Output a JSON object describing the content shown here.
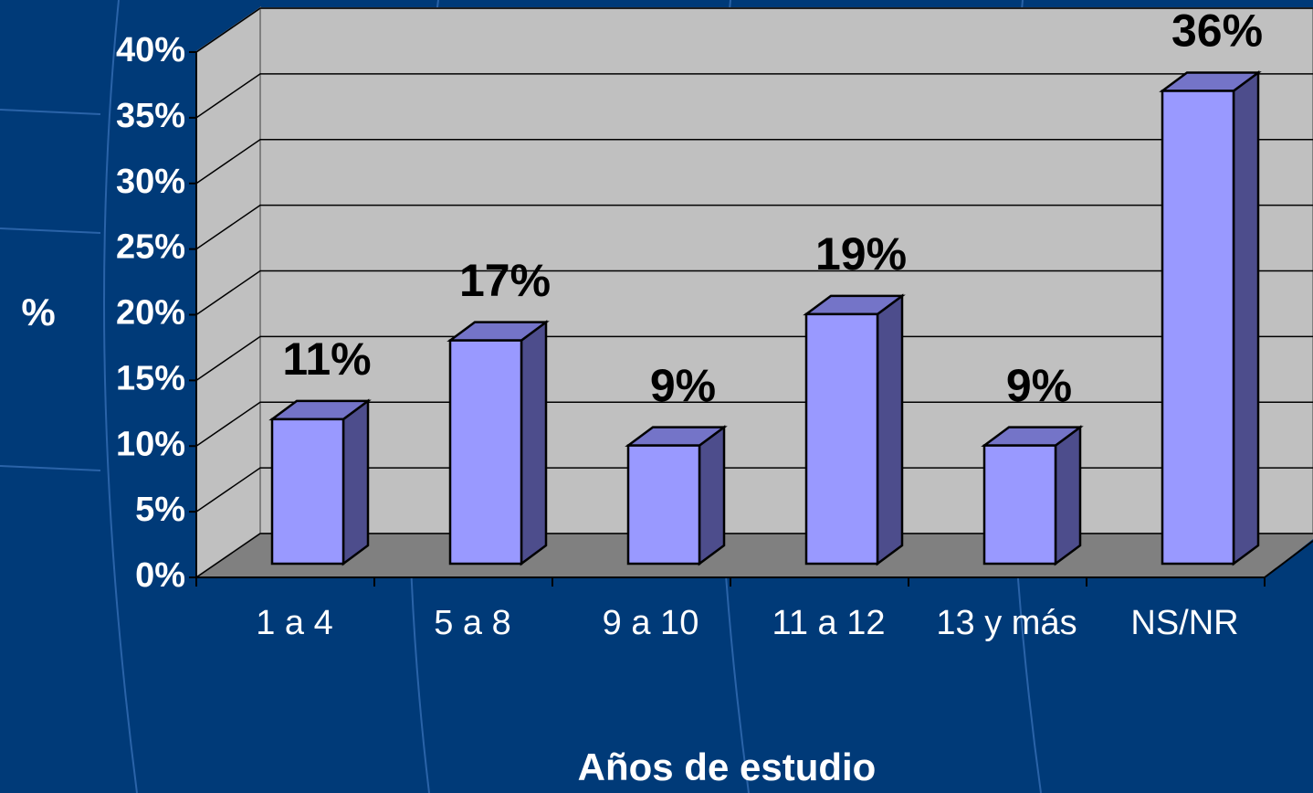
{
  "chart_data": {
    "type": "bar3d",
    "categories": [
      "1 a 4",
      "5 a 8",
      "9 a 10",
      "11 a 12",
      "13 y más",
      "NS/NR"
    ],
    "values": [
      11,
      17,
      9,
      19,
      9,
      36
    ],
    "value_labels": [
      "11%",
      "17%",
      "9%",
      "19%",
      "9%",
      "36%"
    ],
    "color": "#9999ff",
    "ylim": [
      0,
      40
    ],
    "yticks": [
      {
        "value": 0,
        "label": "0%"
      },
      {
        "value": 5,
        "label": "5%"
      },
      {
        "value": 10,
        "label": "10%"
      },
      {
        "value": 15,
        "label": "15%"
      },
      {
        "value": 20,
        "label": "20%"
      },
      {
        "value": 25,
        "label": "25%"
      },
      {
        "value": 30,
        "label": "30%"
      },
      {
        "value": 35,
        "label": "35%"
      },
      {
        "value": 40,
        "label": "40%"
      }
    ],
    "grid": true,
    "ylabel": "%",
    "xlabel": "Años de estudio"
  }
}
